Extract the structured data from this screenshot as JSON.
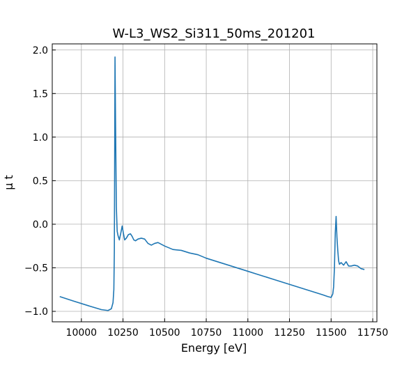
{
  "chart_data": {
    "type": "line",
    "title": "W-L3_WS2_Si311_50ms_201201",
    "xlabel": "Energy [eV]",
    "ylabel": "μ t",
    "xlim": [
      9825,
      11775
    ],
    "ylim": [
      -1.12,
      2.07
    ],
    "xticks": [
      10000,
      10250,
      10500,
      10750,
      11000,
      11250,
      11500,
      11750
    ],
    "xtick_labels": [
      "10000",
      "10250",
      "10500",
      "10750",
      "11000",
      "11250",
      "11500",
      "11750"
    ],
    "yticks": [
      -1.0,
      -0.5,
      0.0,
      0.5,
      1.0,
      1.5,
      2.0
    ],
    "ytick_labels": [
      "−1.0",
      "−0.5",
      "0.0",
      "0.5",
      "1.0",
      "1.5",
      "2.0"
    ],
    "grid": true,
    "line_color": "#1f77b4",
    "series": [
      {
        "x": [
          9870,
          9950,
          10050,
          10120,
          10160,
          10180,
          10190,
          10195,
          10198,
          10200,
          10202,
          10205,
          10210,
          10215,
          10220,
          10228,
          10238,
          10245,
          10252,
          10260,
          10270,
          10282,
          10295,
          10305,
          10315,
          10325,
          10340,
          10360,
          10380,
          10400,
          10420,
          10440,
          10460,
          10480,
          10500,
          10550,
          10600,
          10650,
          10700,
          10750,
          10800,
          10850,
          10900,
          10950,
          11000,
          11050,
          11100,
          11150,
          11200,
          11250,
          11300,
          11350,
          11400,
          11450,
          11480,
          11500,
          11510,
          11515,
          11520,
          11525,
          11530,
          11535,
          11540,
          11545,
          11550,
          11560,
          11575,
          11590,
          11605,
          11620,
          11640,
          11660,
          11680,
          11700
        ],
        "y": [
          -0.83,
          -0.88,
          -0.94,
          -0.98,
          -0.99,
          -0.97,
          -0.9,
          -0.75,
          -0.3,
          0.8,
          1.92,
          1.2,
          0.2,
          -0.08,
          -0.13,
          -0.18,
          -0.09,
          -0.02,
          -0.1,
          -0.18,
          -0.16,
          -0.12,
          -0.11,
          -0.14,
          -0.18,
          -0.19,
          -0.17,
          -0.16,
          -0.17,
          -0.22,
          -0.24,
          -0.22,
          -0.21,
          -0.23,
          -0.25,
          -0.29,
          -0.3,
          -0.33,
          -0.35,
          -0.39,
          -0.42,
          -0.45,
          -0.48,
          -0.51,
          -0.54,
          -0.57,
          -0.6,
          -0.63,
          -0.66,
          -0.69,
          -0.72,
          -0.75,
          -0.78,
          -0.81,
          -0.83,
          -0.84,
          -0.8,
          -0.72,
          -0.5,
          -0.1,
          0.09,
          -0.15,
          -0.3,
          -0.42,
          -0.46,
          -0.44,
          -0.47,
          -0.43,
          -0.48,
          -0.48,
          -0.47,
          -0.48,
          -0.51,
          -0.52
        ]
      }
    ]
  }
}
